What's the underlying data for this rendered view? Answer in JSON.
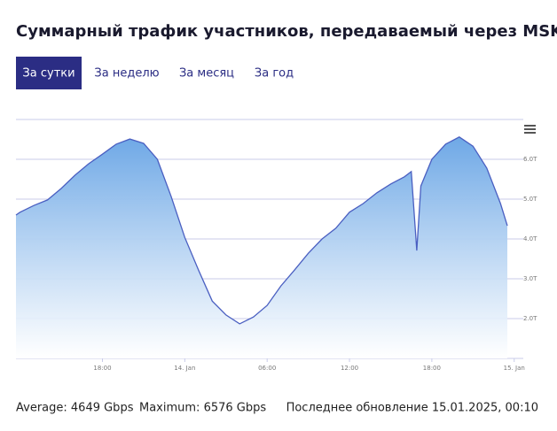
{
  "chart_data": {
    "type": "area",
    "title": "Суммарный трафик участников, передаваемый через MSK-IX",
    "x": [
      11.7,
      12,
      13,
      14,
      15,
      16,
      17,
      18,
      19,
      20,
      21,
      22,
      23,
      24,
      25,
      26,
      27,
      28,
      29,
      30,
      31,
      32,
      33,
      34,
      35,
      36,
      37,
      38,
      39,
      40,
      40.5,
      40.9,
      41.2,
      42,
      43,
      44,
      45,
      46,
      47,
      47.5
    ],
    "series": [
      {
        "color": "#4a5fc1",
        "values": [
          4.6,
          4.67,
          4.84,
          4.98,
          5.27,
          5.6,
          5.89,
          6.13,
          6.38,
          6.51,
          6.4,
          6.0,
          5.07,
          4.04,
          3.22,
          2.44,
          2.09,
          1.87,
          2.04,
          2.33,
          2.82,
          3.22,
          3.64,
          4.0,
          4.27,
          4.67,
          4.89,
          5.16,
          5.38,
          5.56,
          5.69,
          3.71,
          5.33,
          6.0,
          6.38,
          6.56,
          6.33,
          5.78,
          4.89,
          4.33
        ]
      }
    ],
    "xlim": [
      11.7,
      47.5
    ],
    "xticks": [
      {
        "value": 18,
        "label": "18:00"
      },
      {
        "value": 24,
        "label": "14. Jan"
      },
      {
        "value": 30,
        "label": "06:00"
      },
      {
        "value": 36,
        "label": "12:00"
      },
      {
        "value": 42,
        "label": "18:00"
      },
      {
        "value": 48,
        "label": "15. Jan"
      }
    ],
    "ylim": [
      1,
      7
    ],
    "yticks": [
      {
        "value": 2,
        "label": "2.0T"
      },
      {
        "value": 3,
        "label": "3.0T"
      },
      {
        "value": 4,
        "label": "4.0T"
      },
      {
        "value": 5,
        "label": "5.0T"
      },
      {
        "value": 6,
        "label": "6.0T"
      }
    ],
    "grid": true
  },
  "tabs": [
    "За сутки",
    "За неделю",
    "За месяц",
    "За год"
  ],
  "footer": {
    "average": "Average: 4649 Gbps",
    "maximum": "Maximum: 6576 Gbps",
    "updated": "Последнее обновление 15.01.2025, 00:10"
  }
}
